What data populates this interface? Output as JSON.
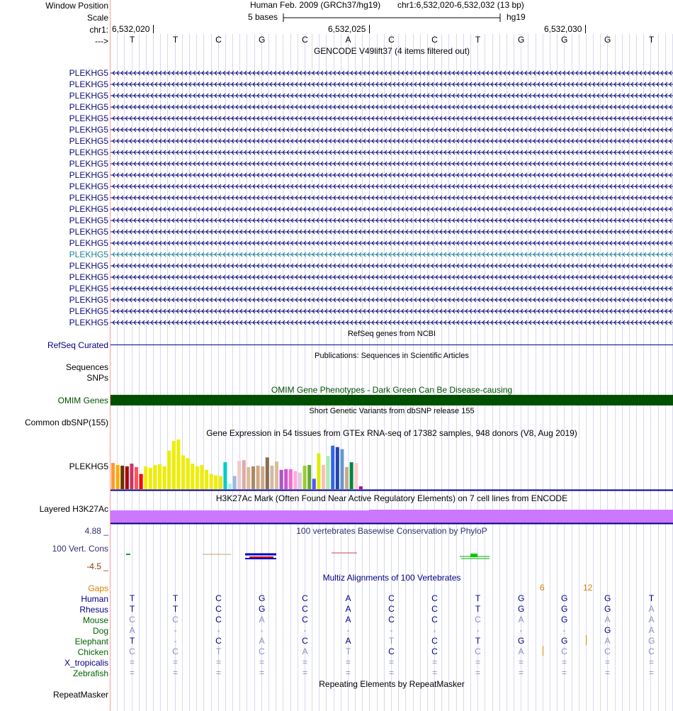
{
  "header": {
    "window_position_label": "Window Position",
    "scale_label": "Scale",
    "chrom_label": "chr1:",
    "arrow_label": "--->",
    "assembly": "Human Feb. 2009 (GRCh37/hg19)",
    "position": "chr1:6,532,020-6,532,032 (13 bp)",
    "scale_text": "5 bases",
    "db": "hg19",
    "coords": [
      "6,532,020",
      "6,532,025",
      "6,532,030"
    ],
    "bases": [
      "T",
      "T",
      "C",
      "G",
      "C",
      "A",
      "C",
      "C",
      "T",
      "G",
      "G",
      "G",
      "T"
    ]
  },
  "gencode": {
    "title": "GENCODE V49lift37 (4 items filtered out)",
    "gene_names": [
      "PLEKHG5",
      "PLEKHG5",
      "PLEKHG5",
      "PLEKHG5",
      "PLEKHG5",
      "PLEKHG5",
      "PLEKHG5",
      "PLEKHG5",
      "PLEKHG5",
      "PLEKHG5",
      "PLEKHG5",
      "PLEKHG5",
      "PLEKHG5",
      "PLEKHG5",
      "PLEKHG5",
      "PLEKHG5",
      "PLEKHG5",
      "PLEKHG5",
      "PLEKHG5",
      "PLEKHG5",
      "PLEKHG5",
      "PLEKHG5",
      "PLEKHG5"
    ],
    "highlight_index": 16,
    "colors": {
      "normal": "#0c0c78",
      "highlight": "#1e8296"
    }
  },
  "refseq": {
    "title": "RefSeq genes from NCBI",
    "label": "RefSeq Curated"
  },
  "publications": {
    "title": "Publications: Sequences in Scientific Articles",
    "label1": "Sequences",
    "label2": "SNPs"
  },
  "omim": {
    "title": "OMIM Gene Phenotypes - Dark Green Can Be Disease-causing",
    "label": "OMIM Genes",
    "color": "#005000"
  },
  "dbsnp": {
    "title": "Short Genetic Variants from dbSNP release 155",
    "label": "Common dbSNP(155)"
  },
  "gtex": {
    "title": "Gene Expression in 54 tissues from GTEx RNA-seq of 17382 samples, 948 donors (V8, Aug 2019)",
    "label": "PLEKHG5",
    "bars": [
      {
        "v": 38,
        "c": "#ff9933"
      },
      {
        "v": 35,
        "c": "#ffaa00"
      },
      {
        "v": 34,
        "c": "#663300"
      },
      {
        "v": 33,
        "c": "#aa0000"
      },
      {
        "v": 37,
        "c": "#cc3366"
      },
      {
        "v": 32,
        "c": "#ff5555"
      },
      {
        "v": 22,
        "c": "#ff0000"
      },
      {
        "v": 33,
        "c": "#eeee00"
      },
      {
        "v": 31,
        "c": "#eeee00"
      },
      {
        "v": 35,
        "c": "#eeee00"
      },
      {
        "v": 36,
        "c": "#eeee00"
      },
      {
        "v": 33,
        "c": "#eeee00"
      },
      {
        "v": 56,
        "c": "#eeee00"
      },
      {
        "v": 70,
        "c": "#eeee00"
      },
      {
        "v": 72,
        "c": "#eeee00"
      },
      {
        "v": 49,
        "c": "#eeee00"
      },
      {
        "v": 45,
        "c": "#eeee00"
      },
      {
        "v": 37,
        "c": "#eeee00"
      },
      {
        "v": 33,
        "c": "#eeee00"
      },
      {
        "v": 35,
        "c": "#eeee00"
      },
      {
        "v": 28,
        "c": "#eeee00"
      },
      {
        "v": 22,
        "c": "#eeee00"
      },
      {
        "v": 20,
        "c": "#eeee00"
      },
      {
        "v": 19,
        "c": "#eeee00"
      },
      {
        "v": 39,
        "c": "#00cccc"
      },
      {
        "v": 8,
        "c": "#aaeeff"
      },
      {
        "v": 19,
        "c": "#99bbdd"
      },
      {
        "v": 41,
        "c": "#eecccc"
      },
      {
        "v": 42,
        "c": "#ddaaaa"
      },
      {
        "v": 32,
        "c": "#ddbb99"
      },
      {
        "v": 33,
        "c": "#aa8866"
      },
      {
        "v": 34,
        "c": "#ccaa88"
      },
      {
        "v": 33,
        "c": "#ccaa88"
      },
      {
        "v": 46,
        "c": "#8b6d4e"
      },
      {
        "v": 34,
        "c": "#ccbbaa"
      },
      {
        "v": 40,
        "c": "#ddbb99"
      },
      {
        "v": 28,
        "c": "#aa55cc"
      },
      {
        "v": 29,
        "c": "#cc55cc"
      },
      {
        "v": 29,
        "c": "#ff66cc"
      },
      {
        "v": 26,
        "c": "#ffaadd"
      },
      {
        "v": 24,
        "c": "#ddccdd"
      },
      {
        "v": 34,
        "c": "#99cc33"
      },
      {
        "v": 35,
        "c": "#66aa33"
      },
      {
        "v": 15,
        "c": "#5555ff"
      },
      {
        "v": 52,
        "c": "#ddee00"
      },
      {
        "v": 35,
        "c": "#ffbbbb"
      },
      {
        "v": 48,
        "c": "#aaeeaa"
      },
      {
        "v": 63,
        "c": "#3366ee"
      },
      {
        "v": 61,
        "c": "#2244aa"
      },
      {
        "v": 58,
        "c": "#6699cc"
      },
      {
        "v": 32,
        "c": "#ccaa88"
      },
      {
        "v": 39,
        "c": "#008844"
      },
      {
        "v": 38,
        "c": "#ffcccc"
      },
      {
        "v": 4,
        "c": "#aa00aa"
      }
    ]
  },
  "h3k27ac": {
    "title": "H3K27Ac Mark (Often Found Near Active Regulatory Elements) on 7 cell lines from ENCODE",
    "label": "Layered H3K27Ac",
    "color": "#cc77ff"
  },
  "cons": {
    "title": "100 vertebrates Basewise Conservation by PhyloP",
    "label": "100 Vert. Cons",
    "max": "4.88 _",
    "min": "-4.5 _"
  },
  "multiz": {
    "title": "Multiz Alignments of 100 Vertebrates",
    "gaps_label": "Gaps",
    "gaps": [
      {
        "pos": 10,
        "text": "6"
      },
      {
        "pos": 11,
        "text": "12"
      }
    ],
    "species": [
      {
        "name": "Human",
        "color": "#000080",
        "bases": [
          "T",
          "T",
          "C",
          "G",
          "C",
          "A",
          "C",
          "C",
          "T",
          "G",
          "G",
          "G",
          "T"
        ],
        "light": [
          0,
          0,
          0,
          0,
          0,
          0,
          0,
          0,
          0,
          0,
          0,
          0,
          0
        ]
      },
      {
        "name": "Rhesus",
        "color": "#000080",
        "bases": [
          "T",
          "T",
          "C",
          "G",
          "C",
          "A",
          "C",
          "C",
          "T",
          "G",
          "G",
          "G",
          "A"
        ],
        "light": [
          0,
          0,
          0,
          0,
          0,
          0,
          0,
          0,
          0,
          0,
          0,
          0,
          1
        ]
      },
      {
        "name": "Mouse",
        "color": "#006400",
        "bases": [
          "C",
          "C",
          "C",
          "A",
          "C",
          "A",
          "C",
          "C",
          "C",
          "A",
          "G",
          "A",
          "A"
        ],
        "light": [
          1,
          1,
          0,
          1,
          0,
          0,
          0,
          0,
          1,
          1,
          0,
          1,
          1
        ]
      },
      {
        "name": "Dog",
        "color": "#006400",
        "bases": [
          "A",
          "-",
          "-",
          "-",
          "-",
          "-",
          "-",
          "-",
          "-",
          "-",
          "-",
          "G",
          "A"
        ],
        "light": [
          1,
          1,
          1,
          1,
          1,
          1,
          1,
          1,
          1,
          1,
          1,
          0,
          1
        ]
      },
      {
        "name": "Elephant",
        "color": "#006400",
        "bases": [
          "T",
          "-",
          "C",
          "A",
          "C",
          "A",
          "T",
          "C",
          "T",
          "G",
          "G",
          "A",
          "G"
        ],
        "light": [
          0,
          1,
          0,
          1,
          0,
          0,
          1,
          0,
          0,
          0,
          0,
          1,
          1
        ]
      },
      {
        "name": "Chicken",
        "color": "#006400",
        "bases": [
          "C",
          "C",
          "T",
          "C",
          "A",
          "T",
          "C",
          "C",
          "C",
          "A",
          "C",
          "C",
          "C"
        ],
        "light": [
          1,
          1,
          1,
          1,
          1,
          1,
          0,
          0,
          1,
          1,
          1,
          1,
          1
        ]
      },
      {
        "name": "X_tropicalis",
        "color": "#000080",
        "bases": [
          "=",
          "=",
          "=",
          "=",
          "=",
          "=",
          "=",
          "=",
          "=",
          "=",
          "=",
          "=",
          "="
        ],
        "light": [
          1,
          1,
          1,
          1,
          1,
          1,
          1,
          1,
          1,
          1,
          1,
          1,
          1
        ]
      },
      {
        "name": "Zebrafish",
        "color": "#006400",
        "bases": [
          "=",
          "=",
          "=",
          "=",
          "=",
          "=",
          "=",
          "=",
          "=",
          "=",
          "=",
          "=",
          "="
        ],
        "light": [
          1,
          1,
          1,
          1,
          1,
          1,
          1,
          1,
          1,
          1,
          1,
          1,
          1
        ]
      }
    ]
  },
  "repeatmasker": {
    "title": "Repeating Elements by RepeatMasker",
    "label": "RepeatMasker"
  }
}
